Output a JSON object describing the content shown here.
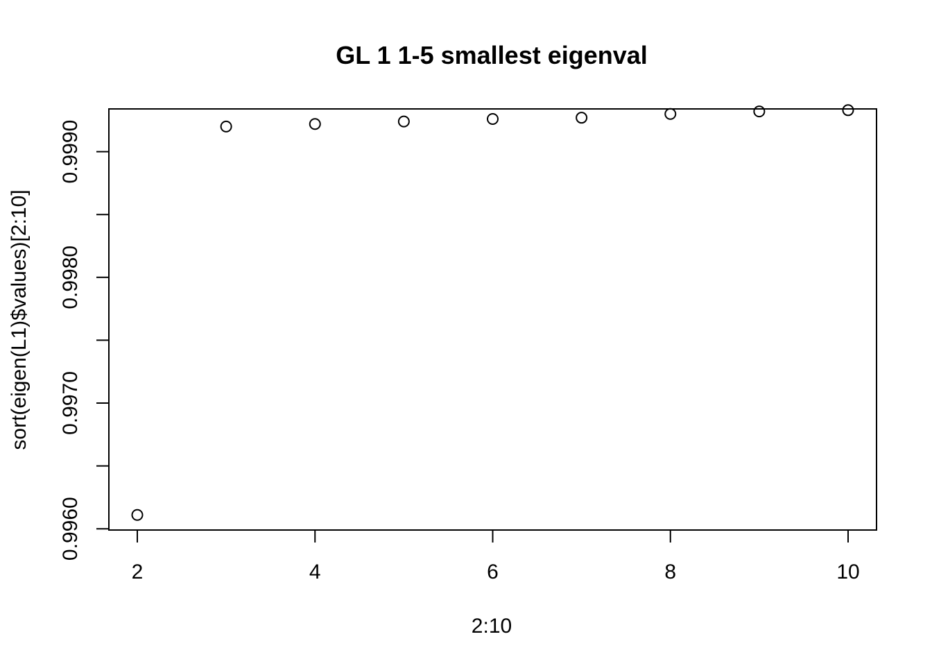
{
  "chart_data": {
    "type": "scatter",
    "title": "GL 1 1-5 smallest eigenval",
    "xlabel": "2:10",
    "ylabel": "sort(eigen(L1)$values)[2:10]",
    "x": [
      2,
      3,
      4,
      5,
      6,
      7,
      8,
      9,
      10
    ],
    "y": [
      0.99611,
      0.9992,
      0.99922,
      0.99924,
      0.99926,
      0.99927,
      0.9993,
      0.99932,
      0.99933
    ],
    "xlim": [
      1.68,
      10.32
    ],
    "ylim": [
      0.99599,
      0.99934
    ],
    "xticks": [
      2,
      4,
      6,
      8,
      10
    ],
    "xtick_labels": [
      "2",
      "4",
      "6",
      "8",
      "10"
    ],
    "yticks": [
      0.996,
      0.9965,
      0.997,
      0.9975,
      0.998,
      0.9985,
      0.999
    ],
    "ytick_labels": [
      "0.9960",
      "",
      "0.9970",
      "",
      "0.9980",
      "",
      "0.9990"
    ],
    "grid": false,
    "marker": "open-circle"
  }
}
